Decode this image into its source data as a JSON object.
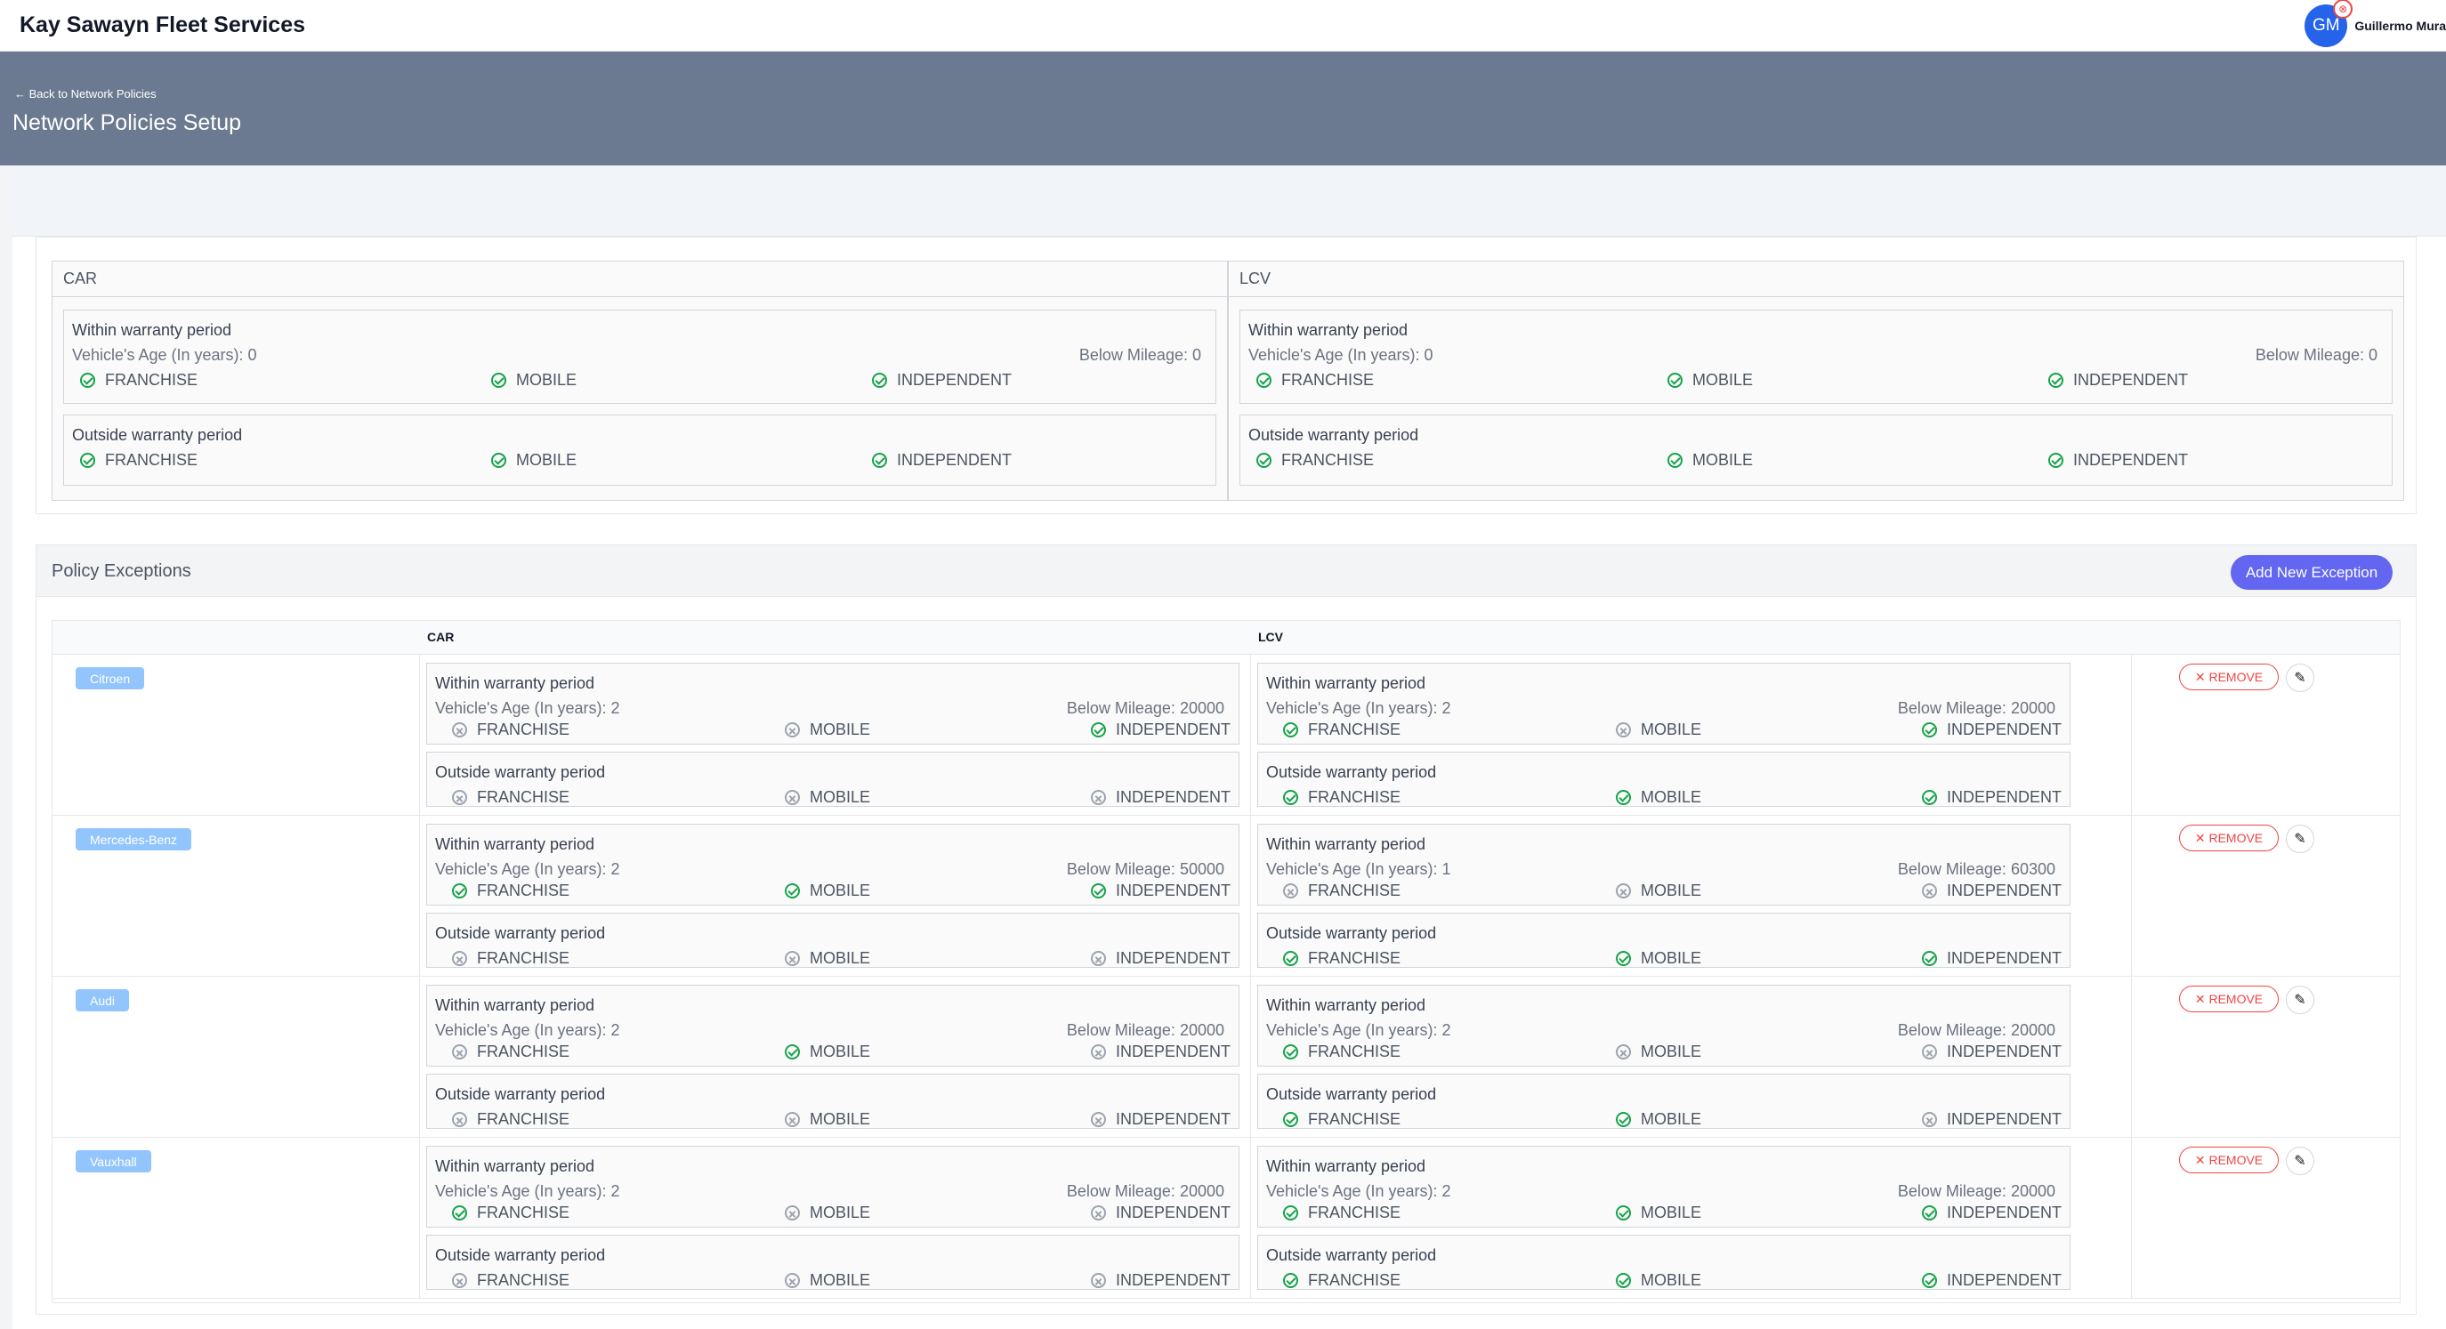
{
  "app": {
    "title": "Kay Sawayn Fleet Services"
  },
  "user": {
    "initials": "GM",
    "name": "Guillermo Mura"
  },
  "header": {
    "back_link": "← Back to Network Policies",
    "title": "Network Policies Setup"
  },
  "labels": {
    "within": "Within warranty period",
    "outside": "Outside warranty period",
    "age_prefix": "Vehicle's Age (In years): ",
    "mileage_prefix": "Below Mileage: ",
    "franchise": "FRANCHISE",
    "mobile": "MOBILE",
    "independent": "INDEPENDENT"
  },
  "policies": [
    {
      "category": "CAR",
      "within": {
        "age": 0,
        "mileage": 0,
        "franchise": true,
        "mobile": true,
        "independent": true
      },
      "outside": {
        "franchise": true,
        "mobile": true,
        "independent": true
      }
    },
    {
      "category": "LCV",
      "within": {
        "age": 0,
        "mileage": 0,
        "franchise": true,
        "mobile": true,
        "independent": true
      },
      "outside": {
        "franchise": true,
        "mobile": true,
        "independent": true
      }
    }
  ],
  "exceptions": {
    "title": "Policy Exceptions",
    "add_button": "Add New Exception",
    "columns": [
      "",
      "CAR",
      "LCV",
      ""
    ],
    "remove_label": "✕ REMOVE",
    "rows": [
      {
        "make": "Citroen",
        "car": {
          "within": {
            "age": 2,
            "mileage": 20000,
            "franchise": false,
            "mobile": false,
            "independent": true
          },
          "outside": {
            "franchise": false,
            "mobile": false,
            "independent": false
          }
        },
        "lcv": {
          "within": {
            "age": 2,
            "mileage": 20000,
            "franchise": true,
            "mobile": false,
            "independent": true
          },
          "outside": {
            "franchise": true,
            "mobile": true,
            "independent": true
          }
        }
      },
      {
        "make": "Mercedes-Benz",
        "car": {
          "within": {
            "age": 2,
            "mileage": 50000,
            "franchise": true,
            "mobile": true,
            "independent": true
          },
          "outside": {
            "franchise": false,
            "mobile": false,
            "independent": false
          }
        },
        "lcv": {
          "within": {
            "age": 1,
            "mileage": 60300,
            "franchise": false,
            "mobile": false,
            "independent": false
          },
          "outside": {
            "franchise": true,
            "mobile": true,
            "independent": true
          }
        }
      },
      {
        "make": "Audi",
        "car": {
          "within": {
            "age": 2,
            "mileage": 20000,
            "franchise": false,
            "mobile": true,
            "independent": false
          },
          "outside": {
            "franchise": false,
            "mobile": false,
            "independent": false
          }
        },
        "lcv": {
          "within": {
            "age": 2,
            "mileage": 20000,
            "franchise": true,
            "mobile": false,
            "independent": false
          },
          "outside": {
            "franchise": true,
            "mobile": true,
            "independent": false
          }
        }
      },
      {
        "make": "Vauxhall",
        "car": {
          "within": {
            "age": 2,
            "mileage": 20000,
            "franchise": true,
            "mobile": false,
            "independent": false
          },
          "outside": {
            "franchise": false,
            "mobile": false,
            "independent": false
          }
        },
        "lcv": {
          "within": {
            "age": 2,
            "mileage": 20000,
            "franchise": true,
            "mobile": true,
            "independent": true
          },
          "outside": {
            "franchise": true,
            "mobile": true,
            "independent": true
          }
        }
      }
    ]
  },
  "colors": {
    "accent": "#6366f1",
    "header_bg": "#6b7a90",
    "ok": "#16a34a",
    "off": "#9ca3af",
    "danger": "#ef4444",
    "tag": "#93c5fd"
  },
  "icons": {
    "enabled": "check-circle-icon",
    "disabled": "x-circle-icon",
    "edit": "pencil-icon",
    "back": "arrow-left-icon"
  }
}
